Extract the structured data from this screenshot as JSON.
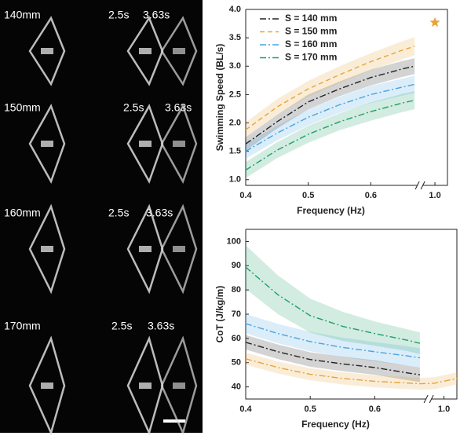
{
  "photos": {
    "rows": [
      {
        "label": "140mm",
        "times": [
          "2.5s",
          "3.63s"
        ]
      },
      {
        "label": "150mm",
        "times": [
          "2.5s",
          "3.63s"
        ]
      },
      {
        "label": "160mm",
        "times": [
          "2.5s",
          "3.63s"
        ]
      },
      {
        "label": "170mm",
        "times": [
          "2.5s",
          "3.63s"
        ]
      }
    ]
  },
  "chart_data": [
    {
      "type": "line",
      "ylabel": "Swimming Speed (BL/s)",
      "xlabel": "Frequency (Hz)",
      "x": [
        0.4,
        0.45,
        0.5,
        0.55,
        0.6,
        0.65,
        0.67
      ],
      "series": [
        {
          "name": "S = 140 mm",
          "color": "#222222",
          "dash": "8 3 2 3",
          "values": [
            1.63,
            2.02,
            2.37,
            2.6,
            2.8,
            2.95,
            3.0
          ],
          "errors": [
            0.12,
            0.12,
            0.13,
            0.13,
            0.14,
            0.14,
            0.14
          ]
        },
        {
          "name": "S = 150 mm",
          "color": "#e8a33a",
          "dash": "6 4",
          "values": [
            1.88,
            2.28,
            2.6,
            2.85,
            3.08,
            3.28,
            3.35
          ],
          "errors": [
            0.13,
            0.14,
            0.14,
            0.15,
            0.15,
            0.16,
            0.16
          ]
        },
        {
          "name": "S = 160 mm",
          "color": "#4aa3df",
          "dash": "8 3 2 3",
          "values": [
            1.5,
            1.82,
            2.1,
            2.32,
            2.5,
            2.63,
            2.68
          ],
          "errors": [
            0.13,
            0.13,
            0.14,
            0.14,
            0.15,
            0.15,
            0.15
          ]
        },
        {
          "name": "S = 170 mm",
          "color": "#1f9e6b",
          "dash": "8 3 2 3",
          "values": [
            1.17,
            1.52,
            1.8,
            2.02,
            2.2,
            2.35,
            2.4
          ],
          "errors": [
            0.14,
            0.14,
            0.15,
            0.15,
            0.16,
            0.16,
            0.16
          ]
        }
      ],
      "points": [
        {
          "x": 1.0,
          "y": 3.77,
          "color": "#e8a33a"
        }
      ],
      "xlim": [
        0.4,
        1.02
      ],
      "axis_break": [
        0.675,
        0.98
      ],
      "ylim": [
        0.9,
        4.0
      ],
      "xticks": [
        0.4,
        0.5,
        0.6,
        {
          "value": 1,
          "label": "1.0"
        }
      ],
      "yticks": [
        {
          "value": 1,
          "label": "1.0"
        },
        1.5,
        {
          "value": 2,
          "label": "2.0"
        },
        2.5,
        {
          "value": 3,
          "label": "3.0"
        },
        3.5,
        {
          "value": 4,
          "label": "4.0"
        }
      ],
      "legend": "upper-left"
    },
    {
      "type": "line",
      "ylabel": "CoT (J/kg/m)",
      "xlabel": "Frequency (Hz)",
      "x": [
        0.4,
        0.45,
        0.5,
        0.55,
        0.6,
        0.65,
        0.67,
        0.985,
        1.02
      ],
      "series": [
        {
          "color": "#222222",
          "dash": "8 3 2 3",
          "values": [
            58.4,
            54.5,
            51.3,
            49.5,
            48,
            45.8,
            45,
            null,
            null
          ],
          "errors": [
            3,
            3,
            3,
            3,
            3,
            3,
            3,
            null,
            null
          ]
        },
        {
          "color": "#e8a33a",
          "dash": "8 3 2 3",
          "values": [
            51.6,
            48,
            45.2,
            43.5,
            42.3,
            41.6,
            41.3,
            41.5,
            43.5
          ],
          "errors": [
            2.5,
            2.5,
            2.5,
            2.5,
            2.5,
            2.5,
            2.5,
            2.5,
            2.5
          ]
        },
        {
          "color": "#4aa3df",
          "dash": "8 3 2 3",
          "values": [
            66.1,
            62,
            58.7,
            56.3,
            54.5,
            52.8,
            52,
            null,
            null
          ],
          "errors": [
            4,
            4,
            4,
            4,
            4,
            4,
            4,
            null,
            null
          ]
        },
        {
          "color": "#1f9e6b",
          "dash": "8 3 2 3",
          "values": [
            89.4,
            78,
            69.4,
            65,
            62,
            59.3,
            58,
            null,
            null
          ],
          "errors": [
            9,
            8,
            7,
            6,
            5,
            4.5,
            4.5,
            null,
            null
          ]
        }
      ],
      "xlim": [
        0.4,
        1.02
      ],
      "axis_break": [
        0.68,
        0.98
      ],
      "ylim": [
        35,
        105
      ],
      "xticks": [
        0.4,
        0.5,
        0.6,
        {
          "value": 1,
          "label": "1.0"
        }
      ],
      "yticks": [
        40,
        50,
        60,
        70,
        80,
        90,
        100
      ]
    }
  ]
}
